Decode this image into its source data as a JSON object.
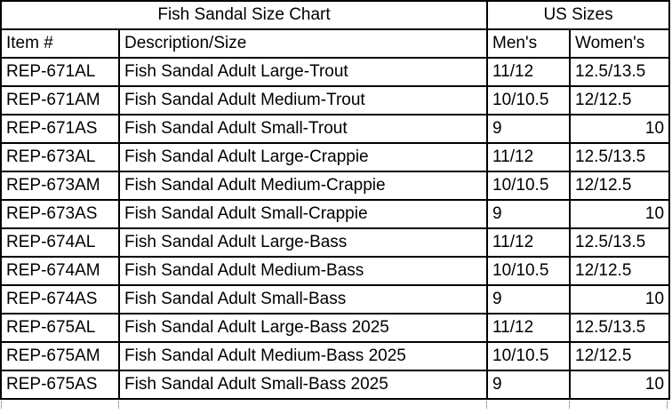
{
  "page": {
    "background_color": "#ffffff",
    "border_color": "#000000",
    "text_color": "#000000",
    "gridline_color": "#a6a6a6"
  },
  "table": {
    "title": "Fish Sandal Size Chart",
    "us_sizes_header": "US Sizes",
    "columns": [
      "Item #",
      "Description/Size",
      "Men's",
      "Women's"
    ],
    "rows": [
      {
        "item": "REP-671AL",
        "description": "Fish Sandal Adult Large-Trout",
        "mens": "11/12",
        "womens": "12.5/13.5",
        "womens_align": "left"
      },
      {
        "item": "REP-671AM",
        "description": "Fish Sandal Adult Medium-Trout",
        "mens": "10/10.5",
        "womens": "12/12.5",
        "womens_align": "left"
      },
      {
        "item": "REP-671AS",
        "description": "Fish Sandal Adult Small-Trout",
        "mens": "9",
        "womens": "10",
        "womens_align": "right"
      },
      {
        "item": "REP-673AL",
        "description": "Fish Sandal Adult Large-Crappie",
        "mens": "11/12",
        "womens": "12.5/13.5",
        "womens_align": "left"
      },
      {
        "item": "REP-673AM",
        "description": "Fish Sandal Adult Medium-Crappie",
        "mens": "10/10.5",
        "womens": "12/12.5",
        "womens_align": "left"
      },
      {
        "item": "REP-673AS",
        "description": "Fish Sandal Adult Small-Crappie",
        "mens": "9",
        "womens": "10",
        "womens_align": "right"
      },
      {
        "item": "REP-674AL",
        "description": "Fish Sandal Adult Large-Bass",
        "mens": "11/12",
        "womens": "12.5/13.5",
        "womens_align": "left"
      },
      {
        "item": "REP-674AM",
        "description": "Fish Sandal Adult Medium-Bass",
        "mens": "10/10.5",
        "womens": "12/12.5",
        "womens_align": "left"
      },
      {
        "item": "REP-674AS",
        "description": "Fish Sandal Adult Small-Bass",
        "mens": "9",
        "womens": "10",
        "womens_align": "right"
      },
      {
        "item": "REP-675AL",
        "description": "Fish Sandal Adult Large-Bass 2025",
        "mens": "11/12",
        "womens": "12.5/13.5",
        "womens_align": "left"
      },
      {
        "item": "REP-675AM",
        "description": "Fish Sandal Adult Medium-Bass 2025",
        "mens": "10/10.5",
        "womens": "12/12.5",
        "womens_align": "left"
      },
      {
        "item": "REP-675AS",
        "description": "Fish Sandal Adult Small-Bass 2025",
        "mens": "9",
        "womens": "10",
        "womens_align": "right"
      }
    ]
  }
}
